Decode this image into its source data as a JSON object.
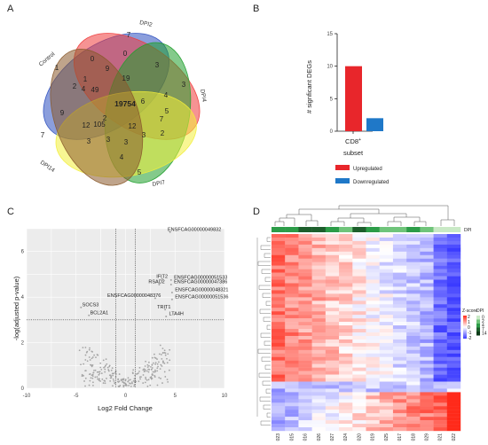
{
  "panels": {
    "a": "A",
    "b": "B",
    "c": "C",
    "d": "D"
  },
  "venn": {
    "sets": [
      {
        "name": "Control",
        "color": "#2c4fbf"
      },
      {
        "name": "DPI2",
        "color": "#ee3b3b"
      },
      {
        "name": "DPI4",
        "color": "#1f9e2c"
      },
      {
        "name": "DPI7",
        "color": "#f2ee3a"
      },
      {
        "name": "DPI14",
        "color": "#8a5a2b"
      }
    ],
    "regions": [
      "1",
      "7",
      "3",
      "5",
      "7",
      "0",
      "0",
      "3",
      "4",
      "4",
      "9",
      "19",
      "5",
      "6",
      "7",
      "2",
      "1",
      "49",
      "2",
      "9",
      "105",
      "12",
      "3",
      "12",
      "3",
      "2",
      "3",
      "4",
      "3",
      "19754"
    ]
  },
  "chart_data": [
    {
      "type": "bar",
      "panel": "B",
      "categories": [
        "CD8+"
      ],
      "category_label": "CD8",
      "category_superscript": "+",
      "series": [
        {
          "name": "Upregulated",
          "values": [
            10
          ],
          "color": "#e8262b"
        },
        {
          "name": "Downregulated",
          "values": [
            2
          ],
          "color": "#1f78c8"
        }
      ],
      "xlabel": "subset",
      "ylabel": "# signficant DEGs",
      "ylim": [
        0,
        15
      ],
      "yticks": [
        "0",
        "5",
        "10",
        "15"
      ],
      "legend_position": "below"
    },
    {
      "type": "scatter",
      "panel": "C",
      "xlabel": "Log2 Fold Change",
      "ylabel": "-log(adjusted p-value)",
      "xlim": [
        -10,
        10
      ],
      "ylim": [
        0,
        7
      ],
      "xticks": [
        "-10",
        "-5",
        "0",
        "5",
        "10"
      ],
      "yticks": [
        "0",
        "2",
        "4",
        "6"
      ],
      "thresholds": {
        "x": [
          -1,
          1
        ],
        "y": 3
      },
      "grid": true,
      "labeled_points": [
        {
          "x": 4.8,
          "y": 6.9,
          "label": "ENSFCAG00000049832"
        },
        {
          "x": 4.0,
          "y": 4.85,
          "label": "IFIT2"
        },
        {
          "x": 4.9,
          "y": 4.8,
          "label": "ENSFCAG00000051533"
        },
        {
          "x": 3.7,
          "y": 4.6,
          "label": "RSAD2"
        },
        {
          "x": 4.9,
          "y": 4.6,
          "label": "ENSFCAG00000047386"
        },
        {
          "x": 5.0,
          "y": 4.25,
          "label": "ENSFCAG00000048321"
        },
        {
          "x": 3.3,
          "y": 4.0,
          "label": "ENSFCAG00000048376"
        },
        {
          "x": 5.0,
          "y": 3.95,
          "label": "ENSFCAG00000051536"
        },
        {
          "x": -4.2,
          "y": 3.6,
          "label": "SOCS3"
        },
        {
          "x": 4.3,
          "y": 3.5,
          "label": "TRIT1"
        },
        {
          "x": 4.4,
          "y": 3.2,
          "label": "LTA4H"
        },
        {
          "x": -3.4,
          "y": 3.25,
          "label": "BCL2A1"
        }
      ]
    },
    {
      "type": "heatmap",
      "panel": "D",
      "columns": [
        "023",
        "015",
        "016",
        "026",
        "027",
        "024",
        "020",
        "019",
        "025",
        "017",
        "018",
        "029",
        "021",
        "022"
      ],
      "annotation_name": "DPI",
      "annotation_colors": [
        "#2c9c48",
        "#2c9c48",
        "#1d5e2c",
        "#1d5e2c",
        "#2c9c48",
        "#6fc47a",
        "#1d5e2c",
        "#2c9c48",
        "#6fc47a",
        "#6fc47a",
        "#2c9c48",
        "#6fc47a",
        "#c9e9c6",
        "#c9e9c6"
      ],
      "zscore_legend": "Z-score",
      "dpi_legend": "DPI",
      "zscore_ticks": [
        "2",
        "1",
        "0",
        "-1",
        "-2"
      ],
      "dpi_ticks": [
        "0",
        "2",
        "4",
        "7",
        "14"
      ],
      "low_color": "#3b3bff",
      "mid_color": "#ffffff",
      "high_color": "#ff2a1a"
    }
  ]
}
